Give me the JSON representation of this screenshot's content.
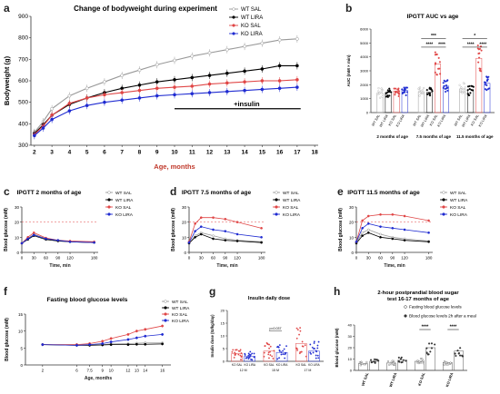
{
  "colors": {
    "wt_sal": "#999999",
    "wt_lira": "#000000",
    "ko_sal": "#e04646",
    "ko_lira": "#1f2bd1"
  },
  "panel_letters": [
    "a",
    "b",
    "c",
    "d",
    "e",
    "f",
    "g",
    "h"
  ],
  "chart_data": [
    {
      "id": "a",
      "type": "line",
      "title": "Change of bodyweight during experiment",
      "xlabel": "Age, months",
      "ylabel": "Bodyweight (g)",
      "xlim": [
        2,
        18
      ],
      "ylim": [
        300,
        900
      ],
      "xticks": [
        "2",
        "3",
        "4",
        "5",
        "6",
        "7",
        "8",
        "9",
        "10",
        "11",
        "12",
        "13",
        "14",
        "15",
        "16",
        "17",
        "18"
      ],
      "yticks": [
        "300",
        "400",
        "500",
        "600",
        "700",
        "800",
        "900"
      ],
      "annotation": "+insulin",
      "legend": [
        "WT SAL",
        "WT LIRA",
        "KO SAL",
        "KO LIRA"
      ],
      "series": [
        {
          "name": "WT SAL",
          "x": [
            2,
            2.5,
            3,
            4,
            5,
            6,
            7,
            8,
            9,
            10,
            11,
            12,
            13,
            14,
            15,
            16,
            17
          ],
          "y": [
            360,
            410,
            470,
            530,
            565,
            595,
            625,
            650,
            675,
            695,
            715,
            730,
            745,
            760,
            775,
            790,
            795
          ]
        },
        {
          "name": "WT LIRA",
          "x": [
            2,
            2.5,
            3,
            4,
            5,
            6,
            7,
            8,
            9,
            10,
            11,
            12,
            13,
            14,
            15,
            16,
            17
          ],
          "y": [
            355,
            395,
            440,
            490,
            520,
            545,
            565,
            580,
            595,
            605,
            615,
            625,
            635,
            645,
            655,
            670,
            670
          ]
        },
        {
          "name": "KO SAL",
          "x": [
            2,
            2.5,
            3,
            4,
            5,
            6,
            7,
            8,
            9,
            10,
            11,
            12,
            13,
            14,
            15,
            16,
            17
          ],
          "y": [
            350,
            390,
            440,
            495,
            520,
            535,
            545,
            555,
            565,
            570,
            575,
            585,
            590,
            595,
            600,
            600,
            605
          ]
        },
        {
          "name": "KO LIRA",
          "x": [
            2,
            2.5,
            3,
            4,
            5,
            6,
            7,
            8,
            9,
            10,
            11,
            12,
            13,
            14,
            15,
            16,
            17
          ],
          "y": [
            345,
            380,
            420,
            460,
            485,
            500,
            510,
            520,
            530,
            535,
            540,
            545,
            550,
            555,
            560,
            565,
            570
          ]
        }
      ]
    },
    {
      "id": "b",
      "type": "bar",
      "title": "IPGTT AUC vs age",
      "ylabel": "AUC (mM × min)",
      "yticks": [
        "0",
        "1000",
        "2000",
        "3000",
        "4000",
        "5000",
        "6000"
      ],
      "ylim": [
        0,
        6000
      ],
      "groups": [
        "2 months of age",
        "7.5 months of age",
        "11.5 months of age"
      ],
      "categories": [
        "WT SAL",
        "WT LIRA",
        "KO SAL",
        "KO LIRA"
      ],
      "series": [
        {
          "name": "2 months of age",
          "values": [
            1400,
            1450,
            1550,
            1600
          ]
        },
        {
          "name": "7.5 months of age",
          "values": [
            1500,
            1450,
            3500,
            1900
          ]
        },
        {
          "name": "11.5 months of age",
          "values": [
            1700,
            1650,
            3900,
            2100
          ]
        }
      ],
      "significance": [
        "***",
        "****",
        "****",
        "*",
        "****",
        "****"
      ]
    },
    {
      "id": "c",
      "type": "line",
      "title": "IPGTT 2 months of age",
      "xlabel": "Time, min",
      "ylabel": "Blood glucose (mM)",
      "xticks": [
        "0",
        "30",
        "60",
        "90",
        "120",
        "180"
      ],
      "yticks": [
        "0",
        "10",
        "20",
        "30"
      ],
      "ylim": [
        0,
        30
      ],
      "legend": [
        "WT SAL",
        "WT LIRA",
        "KO SAL",
        "KO LIRA"
      ],
      "series": [
        {
          "name": "WT SAL",
          "x": [
            0,
            15,
            30,
            60,
            90,
            120,
            180
          ],
          "y": [
            6,
            9,
            12,
            9,
            8,
            7,
            6.5
          ]
        },
        {
          "name": "WT LIRA",
          "x": [
            0,
            15,
            30,
            60,
            90,
            120,
            180
          ],
          "y": [
            6,
            8.5,
            11,
            8.5,
            7.5,
            7,
            6.5
          ]
        },
        {
          "name": "KO SAL",
          "x": [
            0,
            15,
            30,
            60,
            90,
            120,
            180
          ],
          "y": [
            6,
            10,
            13,
            9.5,
            8,
            7.5,
            7
          ]
        },
        {
          "name": "KO LIRA",
          "x": [
            0,
            15,
            30,
            60,
            90,
            120,
            180
          ],
          "y": [
            6,
            9,
            11.5,
            9,
            8,
            7,
            6.5
          ]
        }
      ]
    },
    {
      "id": "d",
      "type": "line",
      "title": "IPGTT 7.5 months of age",
      "xlabel": "Time, min",
      "ylabel": "Blood glucose (mM)",
      "xticks": [
        "0",
        "30",
        "60",
        "90",
        "120",
        "180"
      ],
      "yticks": [
        "0",
        "10",
        "20",
        "30"
      ],
      "ylim": [
        0,
        30
      ],
      "legend": [
        "WT SAL",
        "WT LIRA",
        "KO SAL",
        "KO LIRA"
      ],
      "series": [
        {
          "name": "WT SAL",
          "x": [
            0,
            15,
            30,
            60,
            90,
            120,
            180
          ],
          "y": [
            6,
            11,
            13,
            11,
            9,
            8,
            7
          ]
        },
        {
          "name": "WT LIRA",
          "x": [
            0,
            15,
            30,
            60,
            90,
            120,
            180
          ],
          "y": [
            6,
            10,
            12,
            9,
            8,
            7.5,
            6.5
          ]
        },
        {
          "name": "KO SAL",
          "x": [
            0,
            15,
            30,
            60,
            90,
            120,
            180
          ],
          "y": [
            7,
            19,
            23,
            23,
            22,
            20,
            16
          ]
        },
        {
          "name": "KO LIRA",
          "x": [
            0,
            15,
            30,
            60,
            90,
            120,
            180
          ],
          "y": [
            6.5,
            14,
            17,
            15,
            14,
            12,
            10
          ]
        }
      ]
    },
    {
      "id": "e",
      "type": "line",
      "title": "IPGTT 11.5 months of age",
      "xlabel": "Time, min",
      "ylabel": "Blood glucose (mM)",
      "xticks": [
        "0",
        "30",
        "60",
        "90",
        "120",
        "180"
      ],
      "yticks": [
        "0",
        "10",
        "20",
        "30"
      ],
      "ylim": [
        0,
        30
      ],
      "legend": [
        "WT SAL",
        "WT LIRA",
        "KO SAL",
        "KO LIRA"
      ],
      "series": [
        {
          "name": "WT SAL",
          "x": [
            0,
            15,
            30,
            60,
            90,
            120,
            180
          ],
          "y": [
            6.5,
            13,
            15,
            12,
            10,
            9,
            7.5
          ]
        },
        {
          "name": "WT LIRA",
          "x": [
            0,
            15,
            30,
            60,
            90,
            120,
            180
          ],
          "y": [
            6,
            11,
            13,
            10,
            9,
            8,
            7
          ]
        },
        {
          "name": "KO SAL",
          "x": [
            0,
            15,
            30,
            60,
            90,
            120,
            180
          ],
          "y": [
            7,
            21,
            24,
            25,
            25,
            24,
            21
          ]
        },
        {
          "name": "KO LIRA",
          "x": [
            0,
            15,
            30,
            60,
            90,
            120,
            180
          ],
          "y": [
            7,
            16,
            19,
            17,
            16,
            15,
            13
          ]
        }
      ]
    },
    {
      "id": "f",
      "type": "line",
      "title": "Fasting blood glucose levels",
      "xlabel": "Age, months",
      "ylabel": "Blood glucose (mM)",
      "xticks": [
        "2",
        "6",
        "7.5",
        "9",
        "10",
        "12",
        "13",
        "14",
        "16"
      ],
      "yticks": [
        "0",
        "5",
        "10",
        "15"
      ],
      "ylim": [
        0,
        15
      ],
      "legend": [
        "WT SAL",
        "WT LIRA",
        "KO SAL",
        "KO LIRA"
      ],
      "series": [
        {
          "name": "WT SAL",
          "x": [
            2,
            6,
            7.5,
            9,
            10,
            12,
            13,
            14,
            16
          ],
          "y": [
            6,
            6,
            6,
            6,
            6.2,
            6.3,
            6.4,
            6.5,
            6.5
          ]
        },
        {
          "name": "WT LIRA",
          "x": [
            2,
            6,
            7.5,
            9,
            10,
            12,
            13,
            14,
            16
          ],
          "y": [
            6,
            5.8,
            5.8,
            5.9,
            6,
            6,
            6.1,
            6.1,
            6.2
          ]
        },
        {
          "name": "KO SAL",
          "x": [
            2,
            6,
            7.5,
            9,
            10,
            12,
            13,
            14,
            16
          ],
          "y": [
            6,
            6,
            6.3,
            7,
            7.8,
            9,
            10,
            10.5,
            11.5
          ]
        },
        {
          "name": "KO LIRA",
          "x": [
            2,
            6,
            7.5,
            9,
            10,
            12,
            13,
            14,
            16
          ],
          "y": [
            6,
            5.8,
            6,
            6.3,
            6.8,
            7.5,
            8,
            8.5,
            9
          ]
        }
      ]
    },
    {
      "id": "g",
      "type": "bar",
      "title": "Insulin daily dose",
      "ylabel": "Insulin dose (IU/kg/day)",
      "yticks": [
        "0",
        "5",
        "10",
        "15",
        "20"
      ],
      "ylim": [
        0,
        20
      ],
      "groups": [
        "12 M",
        "15 M",
        "17 M"
      ],
      "categories": [
        "KO SAL",
        "KO LIRA"
      ],
      "series": [
        {
          "name": "12 M",
          "values": [
            3,
            2
          ]
        },
        {
          "name": "15 M",
          "values": [
            4,
            3.5
          ]
        },
        {
          "name": "17 M",
          "values": [
            7,
            4
          ]
        }
      ],
      "annotation": "p=0.037"
    },
    {
      "id": "h",
      "type": "bar",
      "title": "2-hour postprandial blood sugar test 16-17 months of age",
      "ylabel": "Blood glucose (mM)",
      "yticks": [
        "0",
        "10",
        "20",
        "30",
        "40"
      ],
      "ylim": [
        0,
        40
      ],
      "categories": [
        "WT SAL",
        "WT LIRA",
        "KO SAL",
        "KO LIRA"
      ],
      "legend": [
        "Fasting blood glucose levels",
        "Blood glucose levels 2h after a meal"
      ],
      "series": [
        {
          "name": "Fasting blood glucose levels",
          "values": [
            6,
            6.5,
            8,
            7
          ]
        },
        {
          "name": "Blood glucose levels 2h after a meal",
          "values": [
            8,
            9,
            20,
            17
          ]
        }
      ],
      "significance": [
        "****",
        "****"
      ]
    }
  ]
}
